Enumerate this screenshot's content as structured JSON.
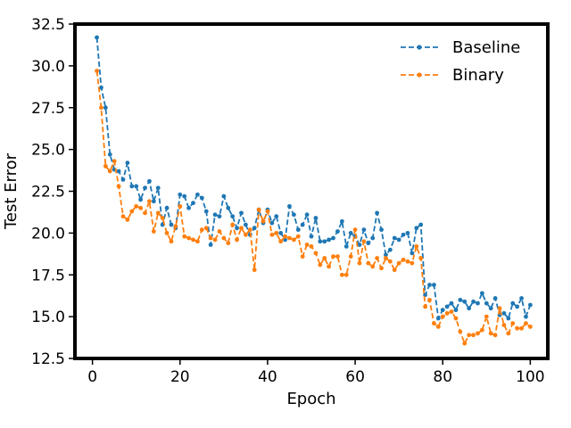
{
  "chart_data": {
    "type": "line",
    "title": "",
    "xlabel": "Epoch",
    "ylabel": "Test Error",
    "xlim": [
      -4,
      104
    ],
    "ylim": [
      12.5,
      32.5
    ],
    "xticks": [
      0,
      20,
      40,
      60,
      80,
      100
    ],
    "yticks": [
      12.5,
      15.0,
      17.5,
      20.0,
      22.5,
      25.0,
      27.5,
      30.0,
      32.5
    ],
    "yticks_labels": [
      "12.5",
      "15.0",
      "17.5",
      "20.0",
      "22.5",
      "25.0",
      "27.5",
      "30.0",
      "32.5"
    ],
    "legend": "top-right",
    "grid": false,
    "x": [
      1,
      2,
      3,
      4,
      5,
      6,
      7,
      8,
      9,
      10,
      11,
      12,
      13,
      14,
      15,
      16,
      17,
      18,
      19,
      20,
      21,
      22,
      23,
      24,
      25,
      26,
      27,
      28,
      29,
      30,
      31,
      32,
      33,
      34,
      35,
      36,
      37,
      38,
      39,
      40,
      41,
      42,
      43,
      44,
      45,
      46,
      47,
      48,
      49,
      50,
      51,
      52,
      53,
      54,
      55,
      56,
      57,
      58,
      59,
      60,
      61,
      62,
      63,
      64,
      65,
      66,
      67,
      68,
      69,
      70,
      71,
      72,
      73,
      74,
      75,
      76,
      77,
      78,
      79,
      80,
      81,
      82,
      83,
      84,
      85,
      86,
      87,
      88,
      89,
      90,
      91,
      92,
      93,
      94,
      95,
      96,
      97,
      98,
      99,
      100
    ],
    "series": [
      {
        "name": "Baseline",
        "color": "#1f77b4",
        "values": [
          31.7,
          28.7,
          27.5,
          24.7,
          23.8,
          23.7,
          23.2,
          24.2,
          22.8,
          22.8,
          22.0,
          22.7,
          23.1,
          21.9,
          22.7,
          20.5,
          21.5,
          20.5,
          20.3,
          22.3,
          22.2,
          21.5,
          21.8,
          22.3,
          22.1,
          21.3,
          19.3,
          21.1,
          21.0,
          22.2,
          21.5,
          21.0,
          20.3,
          21.2,
          20.5,
          19.9,
          20.3,
          21.4,
          20.6,
          21.4,
          20.6,
          21.0,
          20.0,
          19.6,
          21.6,
          21.1,
          20.2,
          20.5,
          21.1,
          19.8,
          20.9,
          19.5,
          19.5,
          19.6,
          19.7,
          20.1,
          20.7,
          19.2,
          20.0,
          19.8,
          19.3,
          20.2,
          19.4,
          19.7,
          21.2,
          20.2,
          18.7,
          19.0,
          19.7,
          19.6,
          19.9,
          20.0,
          18.8,
          20.3,
          20.5,
          16.3,
          16.9,
          16.9,
          14.9,
          15.4,
          15.6,
          15.8,
          15.4,
          16.0,
          15.9,
          15.5,
          15.9,
          15.8,
          16.4,
          15.8,
          15.5,
          16.1,
          15.1,
          15.2,
          14.9,
          15.8,
          15.6,
          16.1,
          15.0,
          15.7
        ]
      },
      {
        "name": "Binary",
        "color": "#ff7f0e",
        "values": [
          29.7,
          27.5,
          24.0,
          23.7,
          24.3,
          22.8,
          21.0,
          20.8,
          21.3,
          21.6,
          21.5,
          21.2,
          21.9,
          20.1,
          21.2,
          20.9,
          20.0,
          19.5,
          20.4,
          21.6,
          19.8,
          19.7,
          19.6,
          19.5,
          20.2,
          20.3,
          19.7,
          19.6,
          20.1,
          19.7,
          19.4,
          20.5,
          19.6,
          20.3,
          19.9,
          20.2,
          17.8,
          21.4,
          20.7,
          21.3,
          19.9,
          20.0,
          19.5,
          19.8,
          19.7,
          19.6,
          19.8,
          18.6,
          19.3,
          19.2,
          18.8,
          18.1,
          18.5,
          18.0,
          18.6,
          18.6,
          17.5,
          17.5,
          18.6,
          20.2,
          18.2,
          19.5,
          18.2,
          18.0,
          18.5,
          17.9,
          18.5,
          18.3,
          17.8,
          18.2,
          18.4,
          18.3,
          18.2,
          19.2,
          18.5,
          15.6,
          16.0,
          14.6,
          14.4,
          15.0,
          15.2,
          15.3,
          14.9,
          14.1,
          13.4,
          13.9,
          13.9,
          14.0,
          14.2,
          15.0,
          14.0,
          13.9,
          15.5,
          14.5,
          14.0,
          14.6,
          14.3,
          14.3,
          14.6,
          14.4
        ]
      }
    ]
  }
}
